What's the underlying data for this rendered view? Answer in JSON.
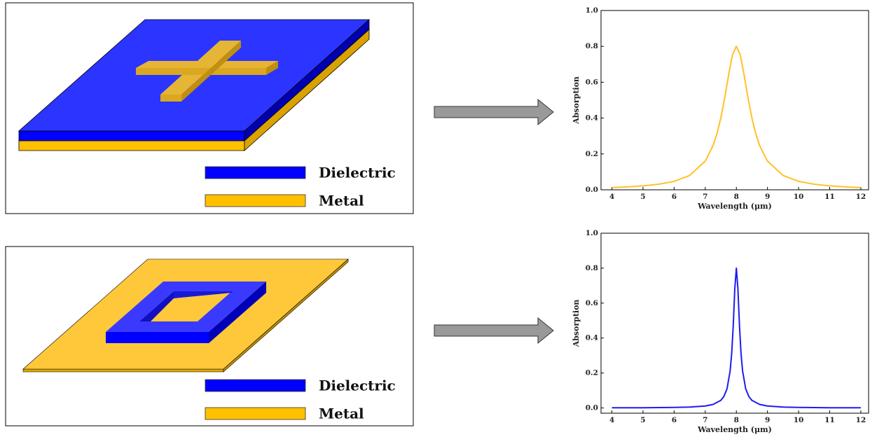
{
  "chart_data": [
    {
      "type": "line",
      "xlabel": "Wavelength (μm)",
      "ylabel": "Absorption",
      "color": "#ffc125",
      "x": [
        4,
        4.5,
        5,
        5.5,
        6,
        6.5,
        7,
        7.25,
        7.375,
        7.5,
        7.625,
        7.75,
        7.875,
        8,
        8.125,
        8.25,
        8.375,
        8.5,
        8.625,
        8.75,
        9,
        9.5,
        10,
        10.5,
        11,
        11.5,
        12
      ],
      "values": [
        0.012,
        0.016,
        0.022,
        0.031,
        0.047,
        0.08,
        0.16,
        0.246,
        0.312,
        0.4,
        0.512,
        0.64,
        0.753,
        0.8,
        0.753,
        0.64,
        0.512,
        0.4,
        0.312,
        0.246,
        0.16,
        0.08,
        0.047,
        0.031,
        0.022,
        0.016,
        0.012
      ],
      "xlim": [
        3.65,
        12.25
      ],
      "ylim": [
        0,
        1
      ],
      "xticks": [
        4,
        5,
        6,
        7,
        8,
        9,
        10,
        11,
        12
      ],
      "yticks": [
        {
          "value": 0,
          "label": "0.0"
        },
        0.2,
        0.4,
        0.6,
        0.8,
        {
          "value": 1,
          "label": "1.0"
        }
      ]
    },
    {
      "type": "line",
      "xlabel": "Wavelength (μm)",
      "ylabel": "Absorption",
      "color": "#1c1cf0",
      "x": [
        4,
        5,
        6,
        6.5,
        7,
        7.25,
        7.5,
        7.6,
        7.7,
        7.8,
        7.85,
        7.9,
        7.95,
        8,
        8.05,
        8.1,
        8.15,
        8.2,
        8.3,
        8.4,
        8.5,
        8.75,
        9,
        9.5,
        10,
        11,
        12
      ],
      "values": [
        0.001,
        0.001,
        0.003,
        0.005,
        0.011,
        0.02,
        0.043,
        0.066,
        0.11,
        0.212,
        0.312,
        0.472,
        0.682,
        0.8,
        0.682,
        0.472,
        0.312,
        0.212,
        0.11,
        0.066,
        0.043,
        0.02,
        0.011,
        0.005,
        0.003,
        0.001,
        0.001
      ],
      "xlim": [
        3.65,
        12.25
      ],
      "ylim": [
        -0.03,
        1
      ],
      "xticks": [
        4,
        5,
        6,
        7,
        8,
        9,
        10,
        11,
        12
      ],
      "yticks": [
        {
          "value": 0,
          "label": "0.0"
        },
        0.2,
        0.4,
        0.6,
        0.8,
        {
          "value": 1,
          "label": "1.0"
        }
      ]
    }
  ],
  "diagrams": [
    {
      "legend": [
        {
          "label": "Dielectric",
          "color": "#0000ff"
        },
        {
          "label": "Metal",
          "color": "#ffc000"
        }
      ]
    },
    {
      "legend": [
        {
          "label": "Dielectric",
          "color": "#0000ff"
        },
        {
          "label": "Metal",
          "color": "#ffc000"
        }
      ]
    }
  ]
}
